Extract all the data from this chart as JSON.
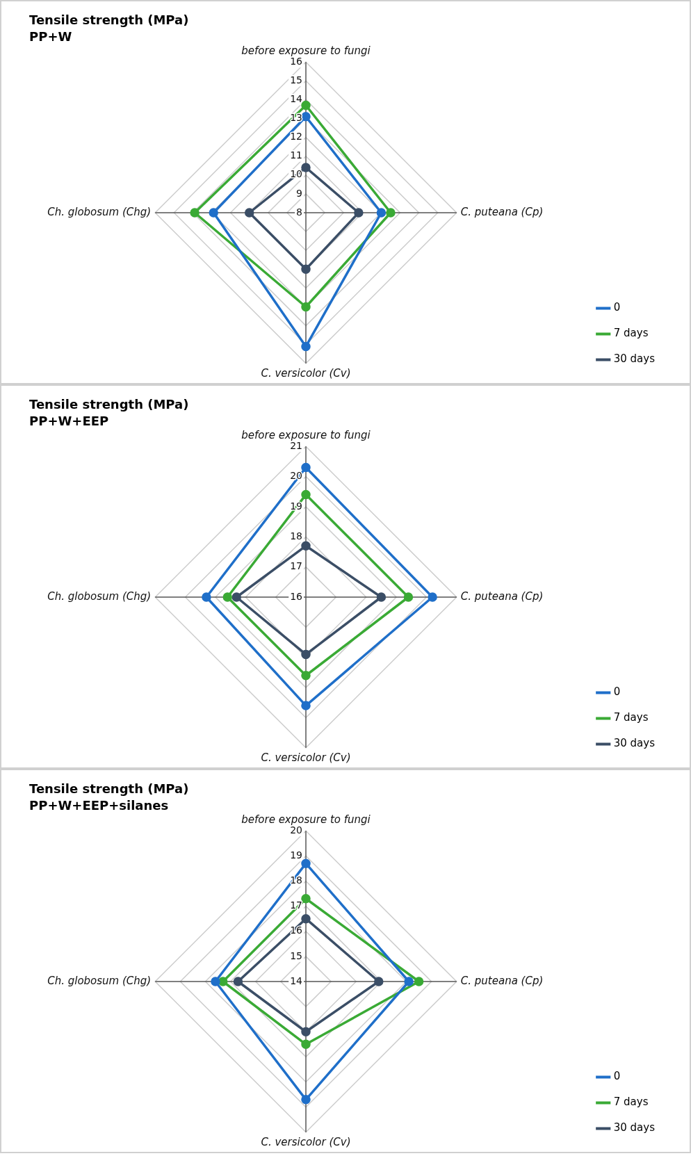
{
  "chart_data": [
    {
      "type": "radar",
      "title": "Tensile strength (MPa)",
      "subtitle": "PP+W",
      "categories": [
        "before exposure to fungi",
        "C. puteana (Cp)",
        "C. versicolor (Cv)",
        "Ch. globosum (Chg)"
      ],
      "ylim": [
        8,
        16
      ],
      "yticks": [
        8,
        9,
        10,
        11,
        12,
        13,
        14,
        15,
        16
      ],
      "grid": true,
      "legend": "bottom right",
      "marker": "circle",
      "series": [
        {
          "name": "0",
          "color": "#1f6fc9",
          "values": [
            13.1,
            12.0,
            15.1,
            12.9
          ]
        },
        {
          "name": "7 days",
          "color": "#3aaa35",
          "values": [
            13.7,
            12.5,
            13.0,
            13.9
          ]
        },
        {
          "name": "30 days",
          "color": "#3b4e66",
          "values": [
            10.4,
            10.8,
            11.0,
            11.0
          ]
        }
      ]
    },
    {
      "type": "radar",
      "title": "Tensile strength (MPa)",
      "subtitle": "PP+W+EEP",
      "categories": [
        "before exposure to fungi",
        "C. puteana (Cp)",
        "C. versicolor (Cv)",
        "Ch. globosum (Chg)"
      ],
      "ylim": [
        16,
        21
      ],
      "yticks": [
        16,
        17,
        18,
        19,
        20,
        21
      ],
      "grid": true,
      "legend": "bottom right",
      "marker": "circle",
      "series": [
        {
          "name": "0",
          "color": "#1f6fc9",
          "values": [
            20.3,
            20.2,
            19.6,
            19.3
          ]
        },
        {
          "name": "7 days",
          "color": "#3aaa35",
          "values": [
            19.4,
            19.4,
            18.6,
            18.6
          ]
        },
        {
          "name": "30 days",
          "color": "#3b4e66",
          "values": [
            17.7,
            18.5,
            17.9,
            18.3
          ]
        }
      ]
    },
    {
      "type": "radar",
      "title": "Tensile strength (MPa)",
      "subtitle": "PP+W+EEP+silanes",
      "categories": [
        "before exposure to fungi",
        "C. puteana (Cp)",
        "C. versicolor (Cv)",
        "Ch. globosum (Chg)"
      ],
      "ylim": [
        14,
        20
      ],
      "yticks": [
        14,
        15,
        16,
        17,
        18,
        19,
        20
      ],
      "grid": true,
      "legend": "bottom right",
      "marker": "circle",
      "series": [
        {
          "name": "0",
          "color": "#1f6fc9",
          "values": [
            18.7,
            18.1,
            18.7,
            17.6
          ]
        },
        {
          "name": "7 days",
          "color": "#3aaa35",
          "values": [
            17.3,
            18.5,
            16.5,
            17.3
          ]
        },
        {
          "name": "30 days",
          "color": "#3b4e66",
          "values": [
            16.5,
            16.9,
            16.0,
            16.7
          ]
        }
      ]
    }
  ]
}
